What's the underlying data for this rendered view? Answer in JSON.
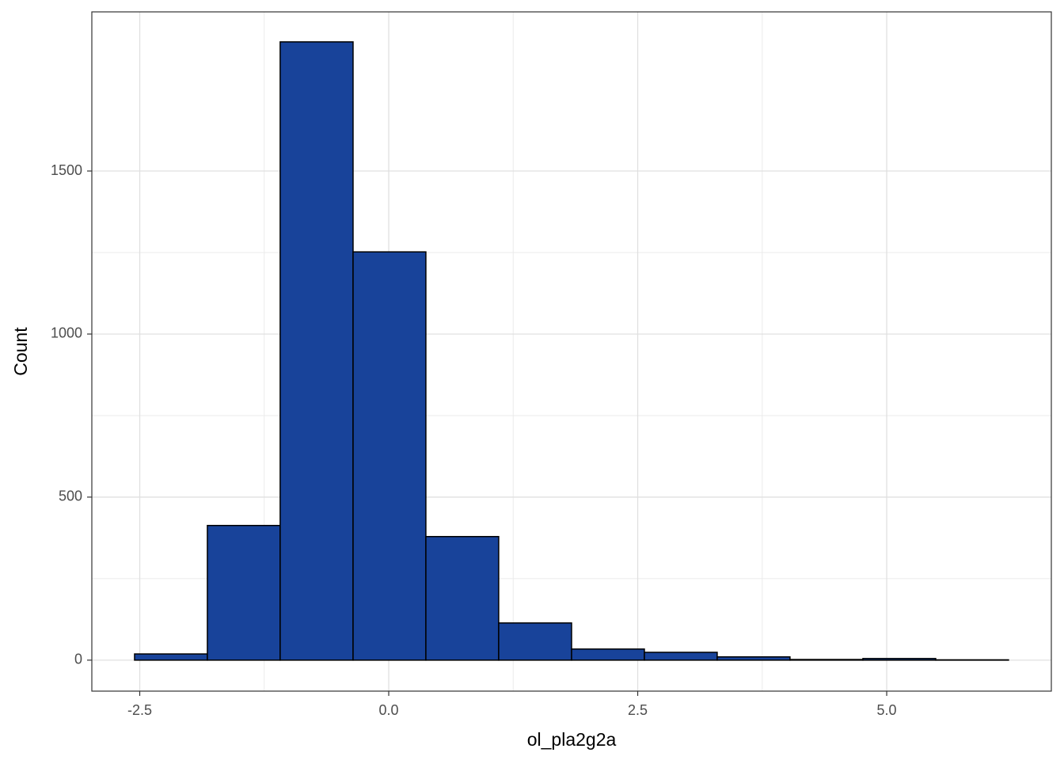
{
  "chart_data": {
    "type": "histogram",
    "x_label": "ol_pla2g2a",
    "y_label": "Count",
    "bins": [
      -2.552,
      -1.821,
      -1.09,
      -0.358,
      0.373,
      1.104,
      1.836,
      2.567,
      3.298,
      4.029,
      4.761,
      5.492,
      6.223
    ],
    "values": [
      19,
      413,
      1896,
      1252,
      379,
      114,
      34,
      24,
      10,
      2,
      5,
      1
    ],
    "color": "#18439a",
    "xlim": [
      -2.981,
      6.653
    ],
    "ylim": [
      -95,
      1988
    ],
    "xticks": [
      {
        "value": -2.5,
        "label": "-2.5"
      },
      {
        "value": 0,
        "label": "0.0"
      },
      2.5,
      {
        "value": 5,
        "label": "5.0"
      }
    ],
    "yticks": [
      0,
      500,
      1000,
      1500
    ],
    "grid": true
  }
}
